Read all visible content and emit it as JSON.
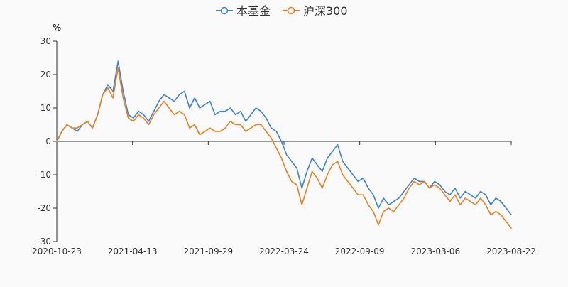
{
  "chart_data": {
    "type": "line",
    "y_unit_label": "%",
    "ylim": [
      -30,
      30
    ],
    "y_ticks": [
      30,
      20,
      10,
      0,
      -10,
      -20,
      -30
    ],
    "x_tick_labels": [
      "2020-10-23",
      "2021-04-13",
      "2021-09-29",
      "2022-03-24",
      "2022-09-09",
      "2023-03-06",
      "2023-08-22"
    ],
    "legend_position": "top-center",
    "series": [
      {
        "name": "本基金",
        "color": "#3d82d8",
        "values": [
          0,
          3,
          5,
          4,
          3,
          5,
          6,
          4,
          8,
          14,
          17,
          15,
          24,
          15,
          8,
          7,
          9,
          8,
          6,
          9,
          12,
          14,
          13,
          12,
          14,
          15,
          10,
          13,
          10,
          11,
          12,
          8,
          9,
          9,
          10,
          8,
          9,
          6,
          8,
          10,
          9,
          7,
          4,
          3,
          0,
          -4,
          -6,
          -8,
          -14,
          -9,
          -5,
          -7,
          -9,
          -5,
          -3,
          -1,
          -6,
          -8,
          -10,
          -12,
          -11,
          -14,
          -16,
          -20,
          -17,
          -19,
          -18,
          -17,
          -15,
          -13,
          -11,
          -12,
          -12,
          -14,
          -12,
          -13,
          -15,
          -16,
          -14,
          -17,
          -15,
          -16,
          -17,
          -15,
          -16,
          -19,
          -17,
          -18,
          -20,
          -22
        ]
      },
      {
        "name": "沪深300",
        "color": "#f07f1d",
        "values": [
          0,
          3,
          5,
          4,
          4,
          5,
          6,
          4,
          8,
          14,
          16,
          13,
          22,
          13,
          7,
          6,
          8,
          7,
          5,
          8,
          10,
          12,
          10,
          8,
          9,
          8,
          4,
          5,
          2,
          3,
          4,
          3,
          3,
          4,
          6,
          5,
          5,
          3,
          4,
          5,
          5,
          3,
          1,
          -2,
          -5,
          -9,
          -12,
          -13,
          -19,
          -14,
          -9,
          -11,
          -14,
          -10,
          -7,
          -6,
          -10,
          -12,
          -14,
          -16,
          -16,
          -19,
          -21,
          -25,
          -21,
          -20,
          -21,
          -19,
          -17,
          -14,
          -12,
          -13,
          -12,
          -14,
          -13,
          -14,
          -16,
          -18,
          -16,
          -19,
          -17,
          -18,
          -19,
          -17,
          -19,
          -22,
          -21,
          -22,
          -24,
          -26
        ]
      }
    ]
  }
}
